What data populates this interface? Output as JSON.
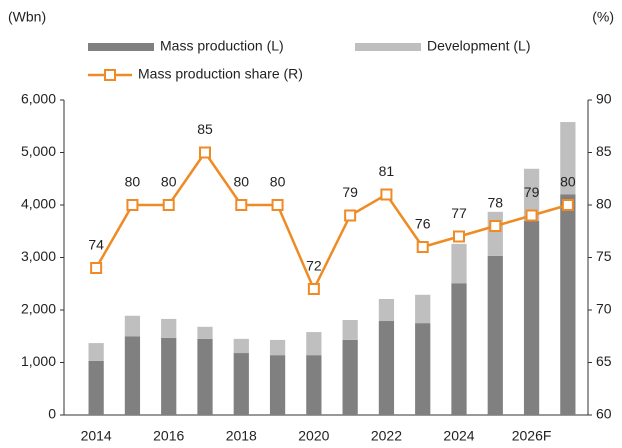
{
  "chart_data": {
    "type": "bar-line",
    "y_unit": "(Wbn)",
    "y2_unit": "(%)",
    "categories": [
      "2014",
      null,
      "2016",
      null,
      "2018",
      null,
      "2020",
      null,
      "2022",
      null,
      "2024",
      null,
      "2026F",
      null
    ],
    "series": [
      {
        "name": "Mass production (L)",
        "color": "#808080",
        "type": "bar",
        "values": [
          1030,
          1500,
          1470,
          1450,
          1180,
          1140,
          1140,
          1430,
          1790,
          1750,
          2510,
          3030,
          3700,
          4200
        ]
      },
      {
        "name": "Development (L)",
        "color": "#bfbfbf",
        "type": "bar",
        "values": [
          340,
          390,
          360,
          230,
          270,
          290,
          440,
          380,
          420,
          540,
          750,
          840,
          990,
          1380
        ]
      },
      {
        "name": "Mass production share (R)",
        "color": "#f08a24",
        "type": "line",
        "axis": "y2",
        "values": [
          74,
          80,
          80,
          85,
          80,
          80,
          72,
          79,
          81,
          76,
          77,
          78,
          79,
          80
        ]
      }
    ],
    "ylim": [
      0,
      6000
    ],
    "yticks": [
      0,
      {
        "value": 1000,
        "label": "1,000"
      },
      {
        "value": 2000,
        "label": "2,000"
      },
      {
        "value": 3000,
        "label": "3,000"
      },
      {
        "value": 4000,
        "label": "4,000"
      },
      {
        "value": 5000,
        "label": "5,000"
      },
      {
        "value": 6000,
        "label": "6,000"
      }
    ],
    "y2lim": [
      60,
      90
    ],
    "y2ticks": [
      60,
      65,
      70,
      75,
      80,
      85,
      90
    ],
    "grid": false
  }
}
